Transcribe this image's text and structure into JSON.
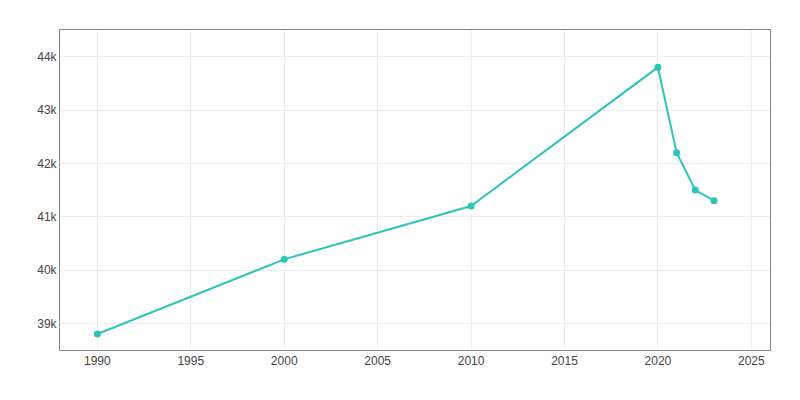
{
  "chart_data": {
    "type": "line",
    "x": [
      1990,
      2000,
      2010,
      2020,
      2021,
      2022,
      2023
    ],
    "values": [
      38800,
      40200,
      41200,
      43800,
      42200,
      41500,
      41300
    ],
    "color": "#2ec4b6",
    "marker": "circle",
    "xlim": [
      1988,
      2026
    ],
    "xticks": [
      1990,
      1995,
      2000,
      2005,
      2010,
      2015,
      2020,
      2025
    ],
    "ylim": [
      38500,
      44500
    ],
    "yticks": [
      {
        "value": 39000,
        "label": "39k"
      },
      {
        "value": 40000,
        "label": "40k"
      },
      {
        "value": 41000,
        "label": "41k"
      },
      {
        "value": 42000,
        "label": "42k"
      },
      {
        "value": 43000,
        "label": "43k"
      },
      {
        "value": 44000,
        "label": "44k"
      }
    ],
    "grid": true
  }
}
